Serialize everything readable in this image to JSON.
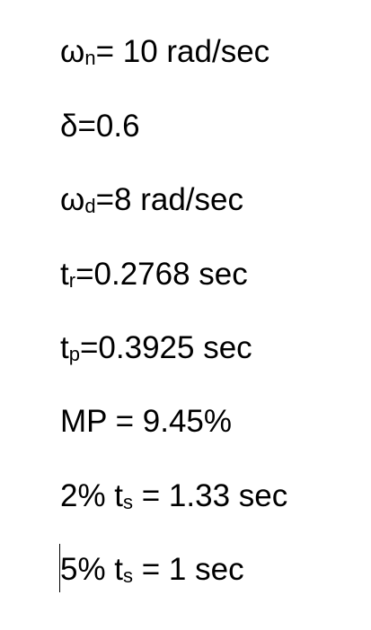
{
  "lines": [
    {
      "pre": "ω",
      "sub": "n",
      "post": "= 10 rad/sec"
    },
    {
      "pre": "δ=0.6",
      "sub": "",
      "post": ""
    },
    {
      "pre": "ω",
      "sub": "d",
      "post": "=8 rad/sec"
    },
    {
      "pre": "t",
      "sub": "r",
      "post": "=0.2768 sec"
    },
    {
      "pre": "t",
      "sub": "p",
      "post": "=0.3925 sec"
    },
    {
      "pre": "MP = 9.45%",
      "sub": "",
      "post": ""
    },
    {
      "pre": "2% t",
      "sub": "s",
      "post": " = 1.33 sec"
    },
    {
      "pre": "5% t",
      "sub": "s",
      "post": " = 1 sec"
    }
  ]
}
